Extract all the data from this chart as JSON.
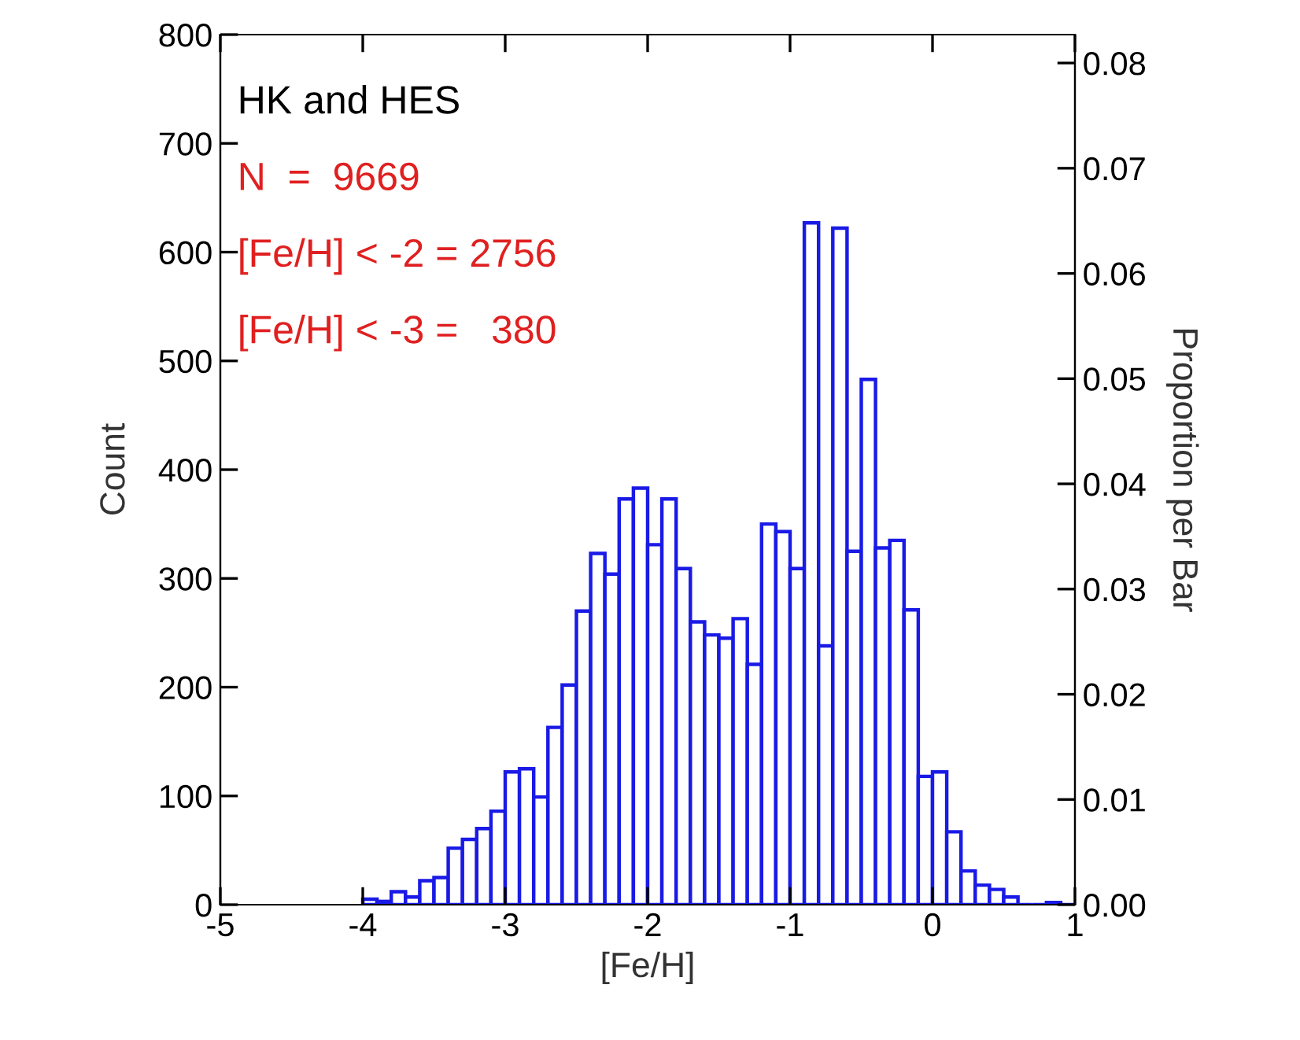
{
  "chart_data": {
    "type": "histogram",
    "xlabel": "[Fe/H]",
    "ylabel": "Count",
    "y2label": "Proportion per Bar",
    "bins": [
      -4.0,
      -3.9,
      -3.8,
      -3.7,
      -3.6,
      -3.5,
      -3.4,
      -3.3,
      -3.2,
      -3.1,
      -3.0,
      -2.9,
      -2.8,
      -2.7,
      -2.6,
      -2.5,
      -2.4,
      -2.3,
      -2.2,
      -2.1,
      -2.0,
      -1.9,
      -1.8,
      -1.7,
      -1.6,
      -1.5,
      -1.4,
      -1.3,
      -1.2,
      -1.1,
      -1.0,
      -0.9,
      -0.8,
      -0.7,
      -0.6,
      -0.5,
      -0.4,
      -0.3,
      -0.2,
      -0.1,
      0.0,
      0.1,
      0.2,
      0.3,
      0.4,
      0.5,
      0.6,
      0.7,
      0.8,
      0.9,
      1.0
    ],
    "values": [
      5,
      3,
      12,
      7,
      22,
      25,
      52,
      60,
      70,
      86,
      122,
      125,
      99,
      163,
      202,
      270,
      323,
      304,
      373,
      383,
      331,
      373,
      309,
      260,
      248,
      245,
      263,
      221,
      350,
      343,
      309,
      627,
      238,
      622,
      325,
      483,
      328,
      335,
      271,
      118,
      122,
      67,
      31,
      18,
      14,
      7,
      0,
      0,
      2,
      0
    ],
    "color": "#1a1ae6",
    "xlim": [
      -5,
      1
    ],
    "xticks": [
      -5,
      -4,
      -3,
      -2,
      -1,
      0,
      1
    ],
    "ylim": [
      0,
      800
    ],
    "yticks": [
      0,
      100,
      200,
      300,
      400,
      500,
      600,
      700,
      800
    ],
    "y2lim": [
      0,
      0.0827
    ],
    "y2ticks": [
      {
        "value": 0,
        "label": "0.00"
      },
      {
        "value": 0.01,
        "label": "0.01"
      },
      {
        "value": 0.02,
        "label": "0.02"
      },
      {
        "value": 0.03,
        "label": "0.03"
      },
      {
        "value": 0.04,
        "label": "0.04"
      },
      {
        "value": 0.05,
        "label": "0.05"
      },
      {
        "value": 0.06,
        "label": "0.06"
      },
      {
        "value": 0.07,
        "label": "0.07"
      },
      {
        "value": 0.08,
        "label": "0.08"
      }
    ],
    "annotations": [
      "HK and HES",
      "N  =  9669",
      "[Fe/H] < -2 = 2756",
      "[Fe/H] < -3 =   380"
    ],
    "grid": false,
    "legend": false
  }
}
